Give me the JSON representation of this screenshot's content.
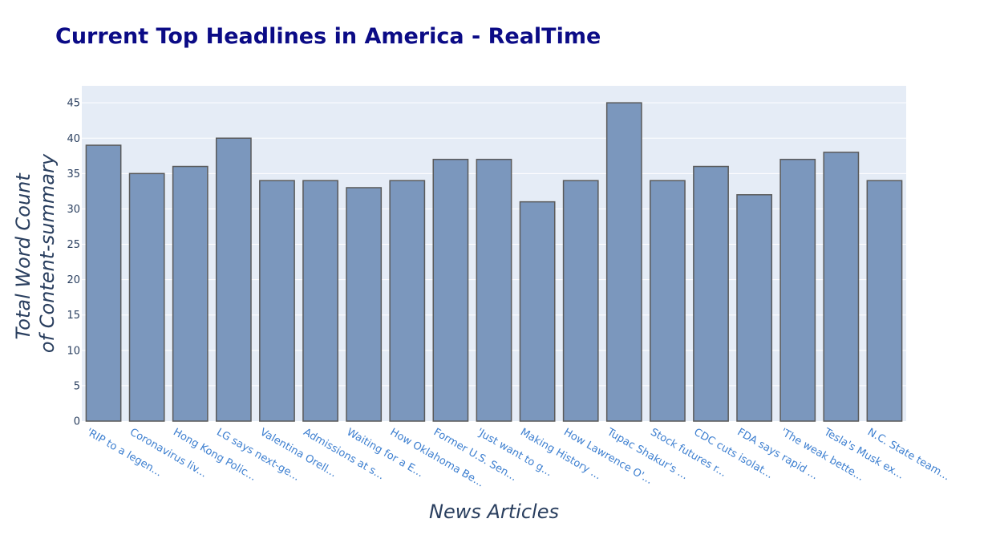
{
  "chart_data": {
    "type": "bar",
    "title": "Current Top Headlines in America - RealTime",
    "xlabel": "News Articles",
    "ylabel": [
      "Total Word Count",
      "of Content-summary"
    ],
    "categories": [
      "'RIP to a legen...",
      "Coronavirus liv...",
      "Hong Kong Polic...",
      "LG says next-ge...",
      "Valentina Orell...",
      "Admissions at s...",
      "Waiting for a E...",
      "How Oklahoma Be...",
      "Former U.S. Sen...",
      "'Just want to g...",
      "Making History ...",
      "How Lawrence O'...",
      "Tupac Shakur's ...",
      "Stock futures r...",
      "CDC cuts isolat...",
      "FDA says rapid ...",
      "'The weak bette...",
      "Tesla's Musk ex...",
      "N.C. State team..."
    ],
    "values": [
      39,
      35,
      36,
      40,
      34,
      34,
      33,
      34,
      37,
      37,
      31,
      34,
      45,
      34,
      36,
      32,
      37,
      38,
      34
    ],
    "ylim": [
      0,
      47.4
    ],
    "yticks": [
      0,
      5,
      10,
      15,
      20,
      25,
      30,
      35,
      40,
      45
    ],
    "grid": true,
    "legend": "none",
    "colors": {
      "bar_fill": "#7b97bd",
      "bar_stroke": "#5a5a5a",
      "plot_bg": "#e5ecf6",
      "grid": "#ffffff",
      "title": "#0b0b86",
      "axis_text": "#2a3f5f",
      "tick_x_text": "#3d7fd0"
    }
  }
}
